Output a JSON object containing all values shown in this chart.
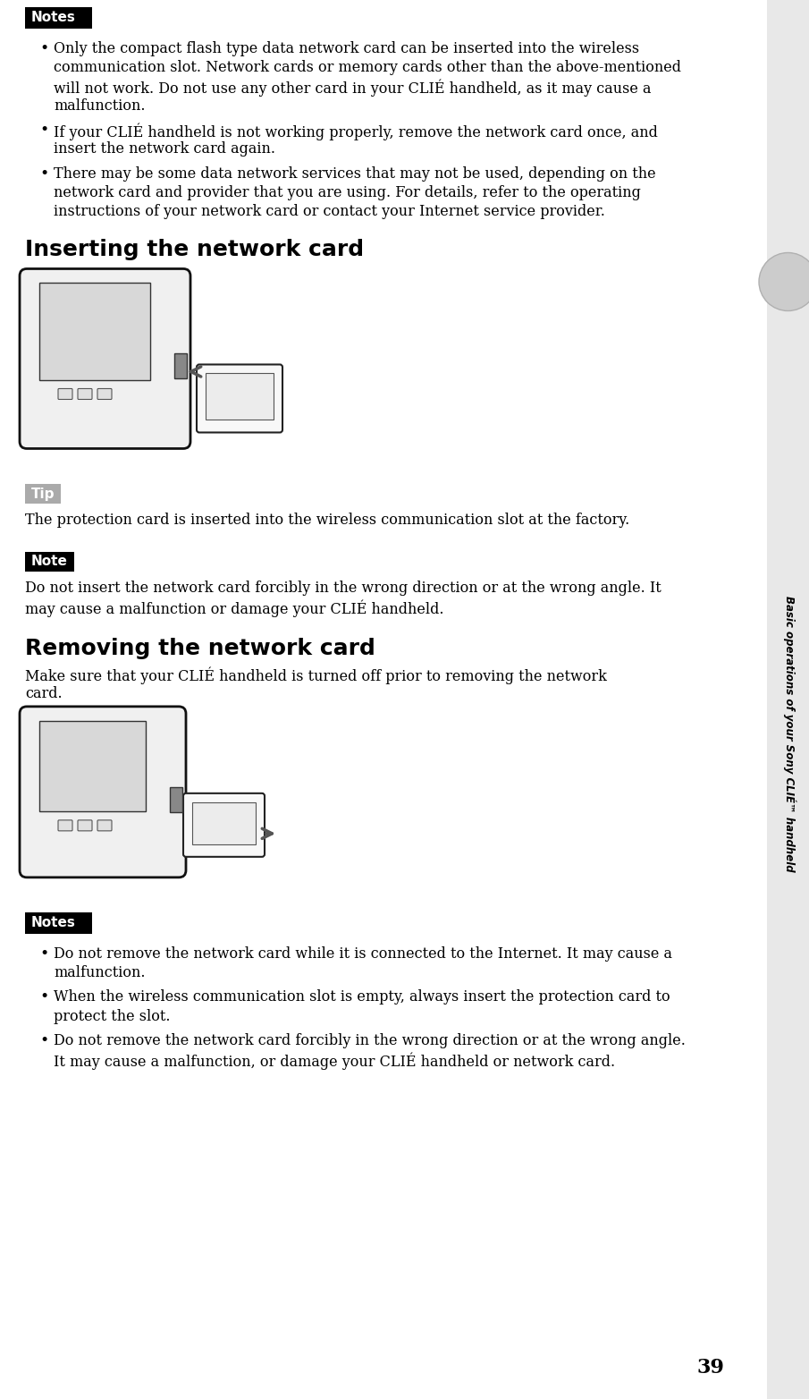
{
  "page_number": "39",
  "sidebar_text": "Basic operations of your Sony CLIÉ™ handheld",
  "notes_label": "Notes",
  "notes_bg": "#000000",
  "notes_text_color": "#ffffff",
  "notes_bullet_1_line1": "Only the compact flash type data network card can be inserted into the wireless",
  "notes_bullet_1_line2": "communication slot. Network cards or memory cards other than the above-mentioned",
  "notes_bullet_1_line3": "will not work. Do not use any other card in your CLIÉ handheld, as it may cause a",
  "notes_bullet_1_line4": "malfunction.",
  "notes_bullet_2_line1": "If your CLIÉ handheld is not working properly, remove the network card once, and",
  "notes_bullet_2_line2": "insert the network card again.",
  "notes_bullet_3_line1": "There may be some data network services that may not be used, depending on the",
  "notes_bullet_3_line2": "network card and provider that you are using. For details, refer to the operating",
  "notes_bullet_3_line3": "instructions of your network card or contact your Internet service provider.",
  "section1_title": "Inserting the network card",
  "tip_label": "Tip",
  "tip_bg": "#aaaaaa",
  "tip_text": "The protection card is inserted into the wireless communication slot at the factory.",
  "note_label": "Note",
  "note_bg": "#000000",
  "note_text_color": "#ffffff",
  "note_text_line1": "Do not insert the network card forcibly in the wrong direction or at the wrong angle. It",
  "note_text_line2": "may cause a malfunction or damage your CLIÉ handheld.",
  "section2_title": "Removing the network card",
  "section2_intro_line1": "Make sure that your CLIÉ handheld is turned off prior to removing the network",
  "section2_intro_line2": "card.",
  "notes2_label": "Notes",
  "notes2_bg": "#000000",
  "notes2_bullet_1_line1": "Do not remove the network card while it is connected to the Internet. It may cause a",
  "notes2_bullet_1_line2": "malfunction.",
  "notes2_bullet_2_line1": "When the wireless communication slot is empty, always insert the protection card to",
  "notes2_bullet_2_line2": "protect the slot.",
  "notes2_bullet_3_line1": "Do not remove the network card forcibly in the wrong direction or at the wrong angle.",
  "notes2_bullet_3_line2": "It may cause a malfunction, or damage your CLIÉ handheld or network card.",
  "bg_color": "#ffffff",
  "body_font_size": 11.5,
  "section_title_font_size": 18,
  "label_font_size": 11,
  "page_num_font_size": 16
}
